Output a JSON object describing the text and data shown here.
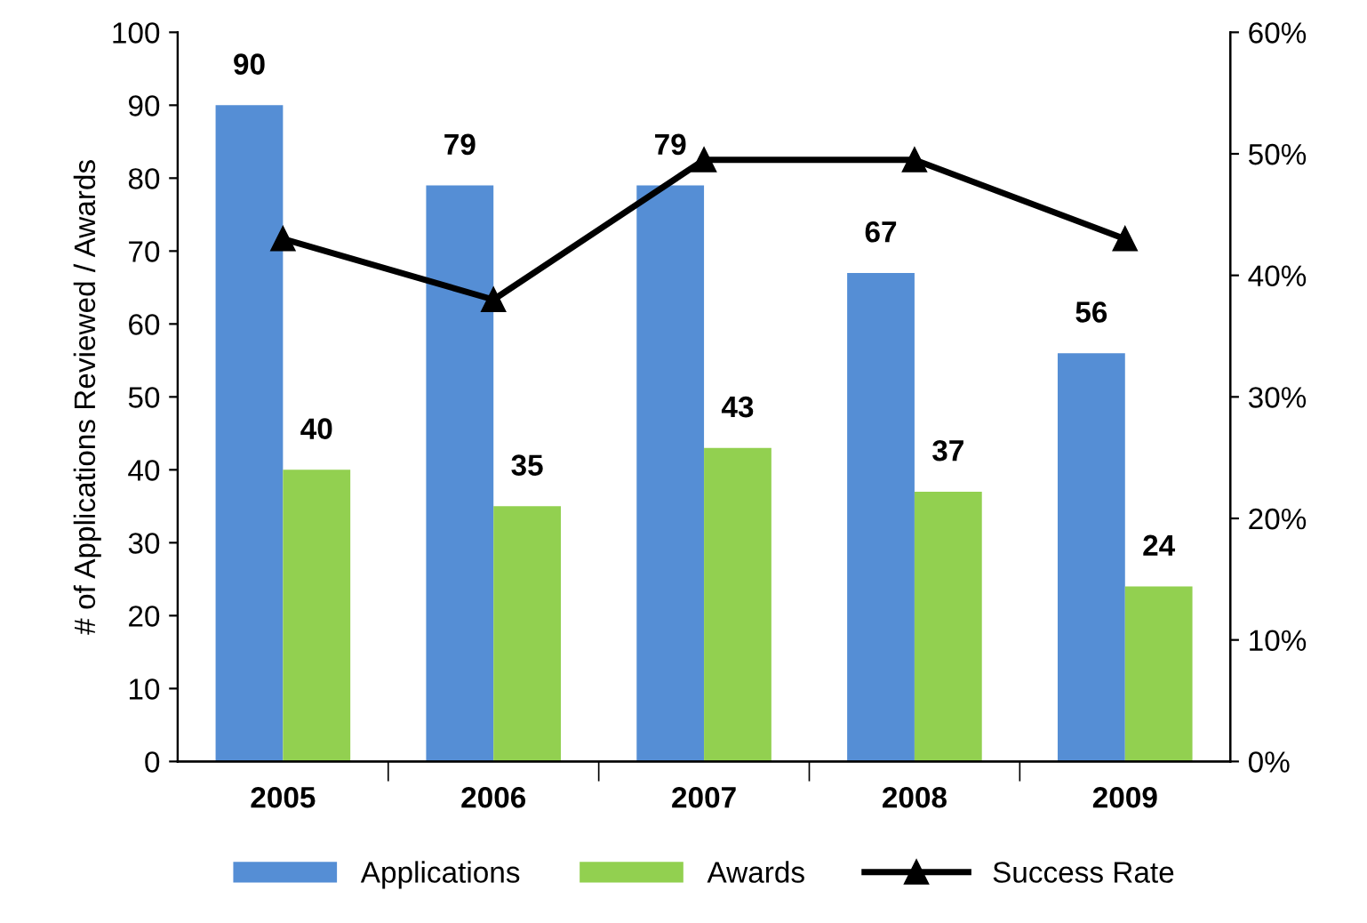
{
  "chart_data": {
    "type": "bar",
    "ylabel": "# of Applications Reviewed / Awards",
    "categories": [
      "2005",
      "2006",
      "2007",
      "2008",
      "2009"
    ],
    "series": [
      {
        "name": "Applications",
        "color": "#558ed5",
        "values": [
          90,
          79,
          79,
          67,
          56
        ],
        "value_labels": [
          "90",
          "79",
          "79",
          "67",
          "56"
        ]
      },
      {
        "name": "Awards",
        "color": "#92d050",
        "values": [
          40,
          35,
          43,
          37,
          24
        ],
        "value_labels": [
          "40",
          "35",
          "43",
          "37",
          "24"
        ]
      },
      {
        "name": "Success Rate",
        "type": "line",
        "axis": "y2",
        "color": "#000000",
        "marker": "triangle",
        "values": [
          43,
          38,
          49.5,
          49.5,
          43
        ]
      }
    ],
    "ylim": [
      0,
      100
    ],
    "yticks": [
      0,
      10,
      20,
      30,
      40,
      50,
      60,
      70,
      80,
      90,
      100
    ],
    "y2lim": [
      0,
      60
    ],
    "y2ticks": [
      {
        "value": 0,
        "label": "0%"
      },
      {
        "value": 10,
        "label": "10%"
      },
      {
        "value": 20,
        "label": "20%"
      },
      {
        "value": 30,
        "label": "30%"
      },
      {
        "value": 40,
        "label": "40%"
      },
      {
        "value": 50,
        "label": "50%"
      },
      {
        "value": 60,
        "label": "60%"
      }
    ],
    "legend": "bottom",
    "grid": false
  }
}
